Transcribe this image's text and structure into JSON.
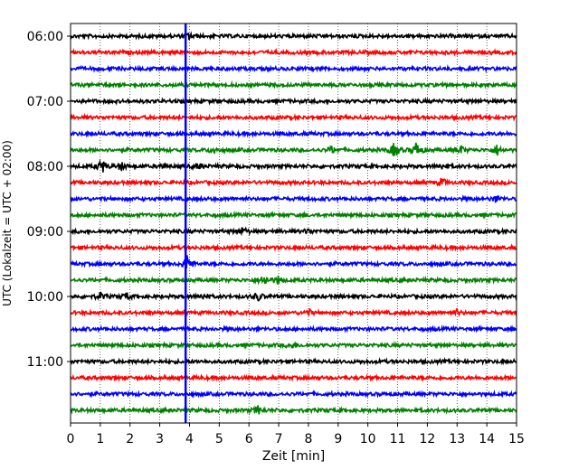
{
  "chart_data": {
    "type": "line",
    "title": "",
    "xlabel": "Zeit  [min]",
    "ylabel": "UTC (Lokalzeit = UTC + 02:00)",
    "xlim": [
      0,
      15
    ],
    "x_ticks": [
      0,
      1,
      2,
      3,
      4,
      5,
      6,
      7,
      8,
      9,
      10,
      11,
      12,
      13,
      14,
      15
    ],
    "y_tick_labels": [
      "06:00",
      "07:00",
      "08:00",
      "09:00",
      "10:00",
      "11:00"
    ],
    "grid": "vertical dotted",
    "trace_interval_min": 15,
    "trace_colors": [
      "#000000",
      "#ff0000",
      "#0000ff",
      "#008000"
    ],
    "rows": [
      {
        "start": "06:00",
        "color": "#000000",
        "events": [
          {
            "x": 4.0,
            "amp": 0.4
          }
        ]
      },
      {
        "start": "06:15",
        "color": "#ff0000",
        "events": []
      },
      {
        "start": "06:30",
        "color": "#0000ff",
        "events": []
      },
      {
        "start": "06:45",
        "color": "#008000",
        "events": []
      },
      {
        "start": "07:00",
        "color": "#000000",
        "events": []
      },
      {
        "start": "07:15",
        "color": "#ff0000",
        "events": []
      },
      {
        "start": "07:30",
        "color": "#0000ff",
        "events": []
      },
      {
        "start": "07:45",
        "color": "#008000",
        "events": [
          {
            "x": 4.8,
            "amp": 0.4
          },
          {
            "x": 8.8,
            "amp": 0.4
          },
          {
            "x": 10.9,
            "amp": 1.0
          },
          {
            "x": 11.65,
            "amp": 1.1
          },
          {
            "x": 13.1,
            "amp": 0.5
          },
          {
            "x": 14.35,
            "amp": 0.6
          }
        ]
      },
      {
        "start": "08:00",
        "color": "#000000",
        "events": [
          {
            "x": 1.05,
            "amp": 0.9
          },
          {
            "x": 1.7,
            "amp": 0.5
          },
          {
            "x": 3.1,
            "amp": 0.3
          },
          {
            "x": 4.3,
            "amp": 0.4
          },
          {
            "x": 12.5,
            "amp": 0.3
          }
        ]
      },
      {
        "start": "08:15",
        "color": "#ff0000",
        "events": [
          {
            "x": 12.5,
            "amp": 0.5
          }
        ]
      },
      {
        "start": "08:30",
        "color": "#0000ff",
        "events": [
          {
            "x": 14.3,
            "amp": 0.4
          }
        ]
      },
      {
        "start": "08:45",
        "color": "#008000",
        "events": []
      },
      {
        "start": "09:00",
        "color": "#000000",
        "events": [
          {
            "x": 5.8,
            "amp": 0.5
          },
          {
            "x": 8.0,
            "amp": 0.3
          }
        ]
      },
      {
        "start": "09:15",
        "color": "#ff0000",
        "events": []
      },
      {
        "start": "09:30",
        "color": "#0000ff",
        "events": [
          {
            "x": 3.95,
            "amp": 1.3
          }
        ]
      },
      {
        "start": "09:45",
        "color": "#008000",
        "events": [
          {
            "x": 6.5,
            "amp": 0.7
          },
          {
            "x": 7.0,
            "amp": 0.5
          }
        ]
      },
      {
        "start": "10:00",
        "color": "#000000",
        "events": [
          {
            "x": 1.0,
            "amp": 0.4
          },
          {
            "x": 1.9,
            "amp": 0.4
          },
          {
            "x": 4.5,
            "amp": 0.4
          },
          {
            "x": 6.3,
            "amp": 0.5
          }
        ]
      },
      {
        "start": "10:15",
        "color": "#ff0000",
        "events": [
          {
            "x": 8.0,
            "amp": 0.4
          },
          {
            "x": 13.0,
            "amp": 0.3
          }
        ]
      },
      {
        "start": "10:30",
        "color": "#0000ff",
        "events": []
      },
      {
        "start": "10:45",
        "color": "#008000",
        "events": [
          {
            "x": 7.5,
            "amp": 0.3
          }
        ]
      },
      {
        "start": "11:00",
        "color": "#000000",
        "events": []
      },
      {
        "start": "11:15",
        "color": "#ff0000",
        "events": []
      },
      {
        "start": "11:30",
        "color": "#0000ff",
        "events": []
      },
      {
        "start": "11:45",
        "color": "#008000",
        "events": [
          {
            "x": 6.3,
            "amp": 0.5
          }
        ]
      }
    ],
    "highlight": {
      "label": "",
      "x": 3.87,
      "color": "#0000ff"
    }
  }
}
